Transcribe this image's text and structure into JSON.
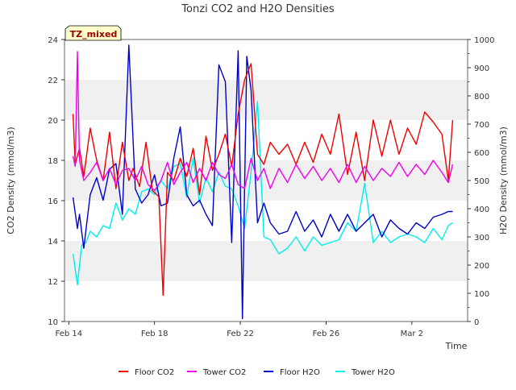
{
  "chart_data": {
    "type": "line",
    "title": "Tonzi CO2 and H2O Densities",
    "xlabel": "Time",
    "ylabel_left": "CO2 Density (mmol/m3)",
    "ylabel_right": "H2O Density (mmol/m3)",
    "site_label": "TZ_mixed",
    "x_range_days": [
      13.8,
      32.6
    ],
    "x_ticks": [
      {
        "label": "Feb 14",
        "day": 14
      },
      {
        "label": "Feb 18",
        "day": 18
      },
      {
        "label": "Feb 22",
        "day": 22
      },
      {
        "label": "Feb 26",
        "day": 26
      },
      {
        "label": "Mar 2",
        "day": 30
      }
    ],
    "ylim_left": [
      10,
      24
    ],
    "yticks_left": [
      "10",
      "12",
      "14",
      "16",
      "18",
      "20",
      "22",
      "24"
    ],
    "ylim_right": [
      0,
      1000
    ],
    "yticks_right": [
      "0",
      "100",
      "200",
      "300",
      "400",
      "500",
      "600",
      "700",
      "800",
      "900",
      "1000"
    ],
    "grid_bands": "alternating gray bands between left-axis ticks",
    "legend_position": "bottom",
    "series": [
      {
        "name": "Floor CO2",
        "axis": "left",
        "color": "#ee0000",
        "x": [
          14.2,
          14.3,
          14.5,
          14.7,
          15.0,
          15.3,
          15.6,
          15.9,
          16.2,
          16.5,
          16.8,
          17.0,
          17.3,
          17.6,
          17.9,
          18.2,
          18.4,
          18.6,
          18.9,
          19.2,
          19.5,
          19.8,
          20.1,
          20.4,
          20.7,
          21.0,
          21.3,
          21.6,
          21.9,
          22.2,
          22.5,
          22.8,
          23.1,
          23.4,
          23.8,
          24.2,
          24.6,
          25.0,
          25.4,
          25.8,
          26.2,
          26.6,
          27.0,
          27.4,
          27.8,
          28.2,
          28.6,
          29.0,
          29.4,
          29.8,
          30.2,
          30.6,
          31.0,
          31.4,
          31.7,
          31.9
        ],
        "values": [
          20.3,
          17.8,
          18.6,
          17.2,
          19.6,
          18.0,
          17.0,
          19.4,
          16.6,
          18.9,
          17.0,
          17.6,
          16.7,
          18.9,
          16.5,
          16.2,
          11.3,
          17.4,
          17.0,
          18.1,
          17.2,
          18.6,
          16.3,
          19.2,
          17.5,
          18.3,
          19.3,
          17.7,
          20.3,
          22.0,
          22.8,
          18.3,
          17.8,
          18.9,
          18.3,
          18.8,
          17.8,
          18.9,
          17.9,
          19.3,
          18.3,
          20.3,
          17.3,
          19.4,
          17.0,
          20.0,
          18.2,
          20.0,
          18.3,
          19.6,
          18.8,
          20.4,
          19.9,
          19.3,
          17.0,
          20.0
        ]
      },
      {
        "name": "Tower CO2",
        "axis": "left",
        "color": "#ee00ee",
        "x": [
          14.2,
          14.3,
          14.4,
          14.5,
          14.7,
          15.0,
          15.3,
          15.6,
          15.9,
          16.2,
          16.5,
          16.8,
          17.1,
          17.4,
          17.7,
          18.0,
          18.3,
          18.6,
          18.9,
          19.2,
          19.5,
          19.8,
          20.1,
          20.4,
          20.7,
          21.0,
          21.3,
          21.6,
          21.9,
          22.2,
          22.5,
          22.8,
          23.1,
          23.4,
          23.8,
          24.2,
          24.6,
          25.0,
          25.4,
          25.8,
          26.2,
          26.6,
          27.0,
          27.4,
          27.8,
          28.2,
          28.6,
          29.0,
          29.4,
          29.8,
          30.2,
          30.6,
          31.0,
          31.4,
          31.7,
          31.9
        ],
        "values": [
          18.2,
          17.7,
          23.4,
          18.0,
          17.0,
          17.4,
          17.9,
          17.0,
          17.6,
          16.8,
          17.5,
          17.6,
          17.0,
          17.7,
          16.8,
          16.5,
          17.0,
          17.9,
          16.8,
          17.4,
          17.9,
          16.9,
          17.6,
          17.0,
          17.9,
          17.3,
          17.1,
          17.8,
          16.8,
          16.6,
          18.1,
          17.0,
          17.6,
          16.6,
          17.6,
          16.9,
          17.8,
          17.1,
          17.7,
          17.0,
          17.6,
          16.9,
          17.8,
          16.9,
          17.7,
          17.0,
          17.6,
          17.2,
          17.9,
          17.2,
          17.8,
          17.3,
          18.0,
          17.4,
          16.9,
          17.8
        ]
      },
      {
        "name": "Floor H2O",
        "axis": "right",
        "color": "#0000cc",
        "x": [
          14.2,
          14.4,
          14.5,
          14.7,
          15.0,
          15.3,
          15.6,
          15.9,
          16.2,
          16.5,
          16.8,
          17.1,
          17.4,
          17.7,
          18.0,
          18.3,
          18.6,
          18.9,
          19.2,
          19.5,
          19.8,
          20.1,
          20.4,
          20.7,
          21.0,
          21.3,
          21.6,
          21.9,
          22.1,
          22.3,
          22.5,
          22.8,
          23.1,
          23.4,
          23.8,
          24.2,
          24.6,
          25.0,
          25.4,
          25.8,
          26.2,
          26.6,
          27.0,
          27.4,
          27.8,
          28.2,
          28.6,
          29.0,
          29.4,
          29.8,
          30.2,
          30.6,
          31.0,
          31.4,
          31.7,
          31.9
        ],
        "values": [
          440,
          330,
          380,
          260,
          450,
          510,
          430,
          540,
          560,
          380,
          980,
          470,
          420,
          450,
          520,
          410,
          420,
          580,
          690,
          450,
          410,
          430,
          380,
          340,
          910,
          850,
          280,
          960,
          10,
          940,
          820,
          350,
          420,
          350,
          310,
          320,
          390,
          320,
          360,
          300,
          380,
          320,
          380,
          320,
          350,
          380,
          300,
          360,
          330,
          310,
          350,
          330,
          370,
          380,
          390,
          390
        ]
      },
      {
        "name": "Tower H2O",
        "axis": "right",
        "color": "#00eeee",
        "x": [
          14.2,
          14.4,
          14.6,
          14.8,
          15.0,
          15.3,
          15.6,
          15.9,
          16.2,
          16.5,
          16.8,
          17.1,
          17.4,
          17.7,
          18.0,
          18.3,
          18.6,
          18.9,
          19.2,
          19.5,
          19.8,
          20.1,
          20.4,
          20.7,
          21.0,
          21.3,
          21.6,
          21.9,
          22.2,
          22.5,
          22.8,
          23.1,
          23.4,
          23.8,
          24.2,
          24.6,
          25.0,
          25.4,
          25.8,
          26.2,
          26.6,
          27.0,
          27.4,
          27.8,
          28.2,
          28.6,
          29.0,
          29.4,
          29.8,
          30.2,
          30.6,
          31.0,
          31.4,
          31.7,
          31.9
        ],
        "values": [
          240,
          130,
          270,
          280,
          320,
          300,
          340,
          330,
          420,
          360,
          400,
          380,
          460,
          470,
          450,
          500,
          470,
          550,
          560,
          440,
          580,
          420,
          510,
          460,
          530,
          480,
          470,
          410,
          330,
          530,
          780,
          300,
          290,
          240,
          260,
          300,
          250,
          300,
          270,
          280,
          290,
          350,
          320,
          490,
          280,
          320,
          280,
          300,
          310,
          300,
          280,
          330,
          290,
          340,
          350
        ]
      }
    ]
  }
}
